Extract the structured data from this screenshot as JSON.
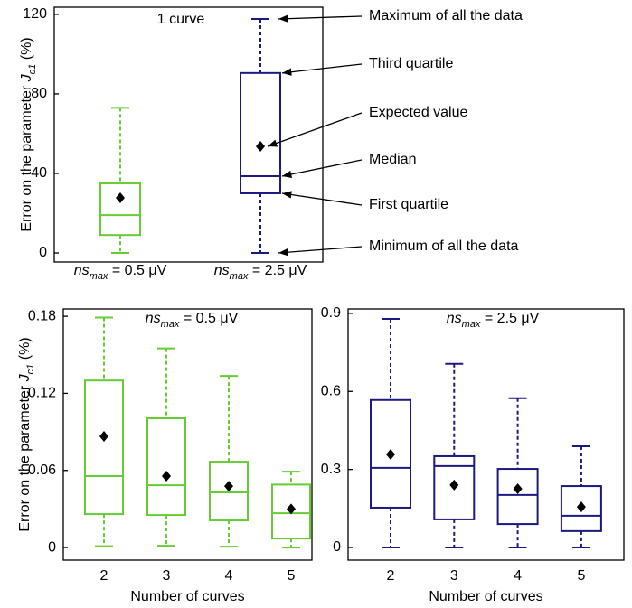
{
  "chart_data": [
    {
      "type": "box",
      "title": "1 curve",
      "ylabel": [
        {
          "text": "Error on the parameter "
        },
        {
          "text": "J",
          "style": "italic"
        },
        {
          "text": "c1",
          "style": "italic-sub"
        },
        {
          "text": " (%)"
        }
      ],
      "categories": [
        [
          {
            "text": "ns",
            "style": "italic"
          },
          {
            "text": "max",
            "style": "italic-sub"
          },
          {
            "text": " = 0.5 μV"
          }
        ],
        [
          {
            "text": "ns",
            "style": "italic"
          },
          {
            "text": "max",
            "style": "italic-sub"
          },
          {
            "text": " = 2.5 μV"
          }
        ]
      ],
      "colors": [
        "#66cc33",
        "#1a1a80"
      ],
      "boxes": [
        {
          "min": 0,
          "q1": 9,
          "median": 19,
          "q3": 35,
          "max": 73,
          "mean": 27.7
        },
        {
          "min": 0,
          "q1": 30,
          "median": 38.6,
          "q3": 90.5,
          "max": 117.7,
          "mean": 53.6
        }
      ],
      "ylim": [
        -4.55,
        123.6
      ],
      "yticks": [
        0,
        40,
        80,
        120
      ],
      "annotations": [
        "Maximum of all the data",
        "Third quartile",
        "Expected value",
        "Median",
        "First quartile",
        "Minimum of all the data"
      ]
    },
    {
      "type": "box",
      "title": [
        {
          "text": "ns",
          "style": "italic"
        },
        {
          "text": "max",
          "style": "italic-sub"
        },
        {
          "text": " = 0.5 μV"
        }
      ],
      "ylabel": [
        {
          "text": "Error on the parameter "
        },
        {
          "text": "J",
          "style": "italic"
        },
        {
          "text": "c1",
          "style": "italic-sub"
        },
        {
          "text": " (%)"
        }
      ],
      "xlabel": "Number of curves",
      "categories": [
        "2",
        "3",
        "4",
        "5"
      ],
      "color": "#66cc33",
      "boxes": [
        {
          "min": 0.001,
          "q1": 0.026,
          "median": 0.0556,
          "q3": 0.13,
          "max": 0.179,
          "mean": 0.0865
        },
        {
          "min": 0.0014,
          "q1": 0.0253,
          "median": 0.0485,
          "q3": 0.1006,
          "max": 0.155,
          "mean": 0.0556
        },
        {
          "min": 0.0007,
          "q1": 0.0211,
          "median": 0.0429,
          "q3": 0.0668,
          "max": 0.1336,
          "mean": 0.0478
        },
        {
          "min": 0.0,
          "q1": 0.007,
          "median": 0.0267,
          "q3": 0.049,
          "max": 0.059,
          "mean": 0.03
        }
      ],
      "ylim": [
        -0.0098,
        0.1857
      ],
      "yticks": [
        0,
        0.06,
        0.12,
        0.18
      ]
    },
    {
      "type": "box",
      "title": [
        {
          "text": "ns",
          "style": "italic"
        },
        {
          "text": "max",
          "style": "italic-sub"
        },
        {
          "text": " = 2.5 μV"
        }
      ],
      "xlabel": "Number of curves",
      "categories": [
        "2",
        "3",
        "4",
        "5"
      ],
      "color": "#1a1a80",
      "boxes": [
        {
          "min": 0,
          "q1": 0.153,
          "median": 0.306,
          "q3": 0.567,
          "max": 0.879,
          "mean": 0.358
        },
        {
          "min": 0,
          "q1": 0.108,
          "median": 0.313,
          "q3": 0.351,
          "max": 0.706,
          "mean": 0.24
        },
        {
          "min": 0,
          "q1": 0.09,
          "median": 0.202,
          "q3": 0.302,
          "max": 0.574,
          "mean": 0.226
        },
        {
          "min": 0,
          "q1": 0.063,
          "median": 0.122,
          "q3": 0.236,
          "max": 0.389,
          "mean": 0.156
        }
      ],
      "ylim": [
        -0.0486,
        0.917
      ],
      "yticks": [
        0,
        0.3,
        0.6,
        0.9
      ]
    }
  ]
}
